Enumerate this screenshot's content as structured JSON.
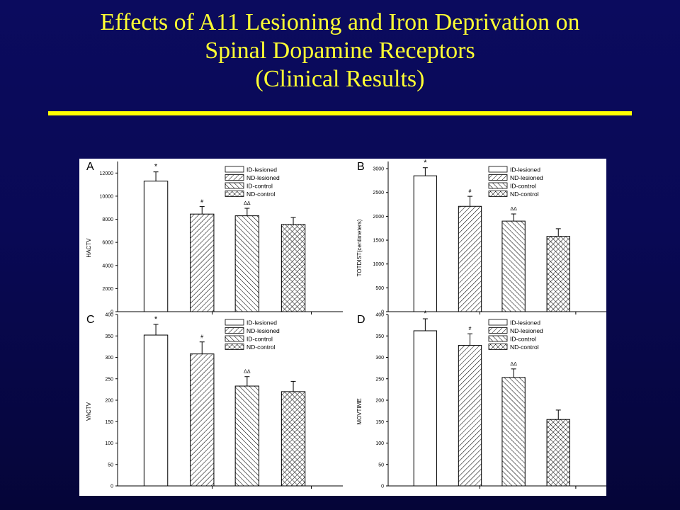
{
  "slide": {
    "title_lines": [
      "Effects of A11 Lesioning and Iron Deprivation on",
      "Spinal Dopamine Receptors",
      "(Clinical Results)"
    ]
  },
  "chart_data": [
    {
      "panel_label": "A",
      "type": "bar",
      "categories": [
        "ID-lesioned",
        "ND-lesioned",
        "ID-control",
        "ND-control"
      ],
      "values": [
        11300,
        8450,
        8300,
        7550
      ],
      "errors": [
        800,
        650,
        650,
        600
      ],
      "markers": [
        "*",
        "#",
        "ΔΔ",
        ""
      ],
      "ylabel": "HACTV",
      "ylim": [
        0,
        13000
      ],
      "yticks": [
        0,
        2000,
        4000,
        6000,
        8000,
        10000,
        12000
      ],
      "legend": [
        "ID-lesioned",
        "ND-lesioned",
        "ID-control",
        "ND-control"
      ],
      "legend_position": "top-right"
    },
    {
      "panel_label": "B",
      "type": "bar",
      "categories": [
        "ID-lesioned",
        "ND-lesioned",
        "ID-control",
        "ND-control"
      ],
      "values": [
        2850,
        2210,
        1900,
        1580
      ],
      "errors": [
        170,
        210,
        150,
        160
      ],
      "markers": [
        "*",
        "#",
        "ΔΔ",
        ""
      ],
      "ylabel": "TOTDIST(centimeters)",
      "ylim": [
        0,
        3150
      ],
      "yticks": [
        0,
        500,
        1000,
        1500,
        2000,
        2500,
        3000
      ],
      "legend": [
        "ID-lesioned",
        "ND-lesioned",
        "ID-control",
        "ND-control"
      ],
      "legend_position": "top-right"
    },
    {
      "panel_label": "C",
      "type": "bar",
      "categories": [
        "ID-lesioned",
        "ND-lesioned",
        "ID-control",
        "ND-control"
      ],
      "values": [
        352,
        308,
        233,
        220
      ],
      "errors": [
        25,
        28,
        22,
        24
      ],
      "markers": [
        "*",
        "#",
        "ΔΔ",
        ""
      ],
      "ylabel": "VACTV",
      "ylim": [
        0,
        400
      ],
      "yticks": [
        0,
        50,
        100,
        150,
        200,
        250,
        300,
        350,
        400
      ],
      "legend": [
        "ID-lesioned",
        "ND-lesioned",
        "ID-control",
        "ND-control"
      ],
      "legend_position": "top-right"
    },
    {
      "panel_label": "D",
      "type": "bar",
      "categories": [
        "ID-lesioned",
        "ND-lesioned",
        "ID-control",
        "ND-control"
      ],
      "values": [
        362,
        328,
        253,
        155
      ],
      "errors": [
        28,
        27,
        20,
        22
      ],
      "markers": [
        "*",
        "#",
        "ΔΔ",
        ""
      ],
      "ylabel": "MOVTIME",
      "ylim": [
        0,
        400
      ],
      "yticks": [
        0,
        50,
        100,
        150,
        200,
        250,
        300,
        350,
        400
      ],
      "legend": [
        "ID-lesioned",
        "ND-lesioned",
        "ID-control",
        "ND-control"
      ],
      "legend_position": "top-right"
    }
  ]
}
